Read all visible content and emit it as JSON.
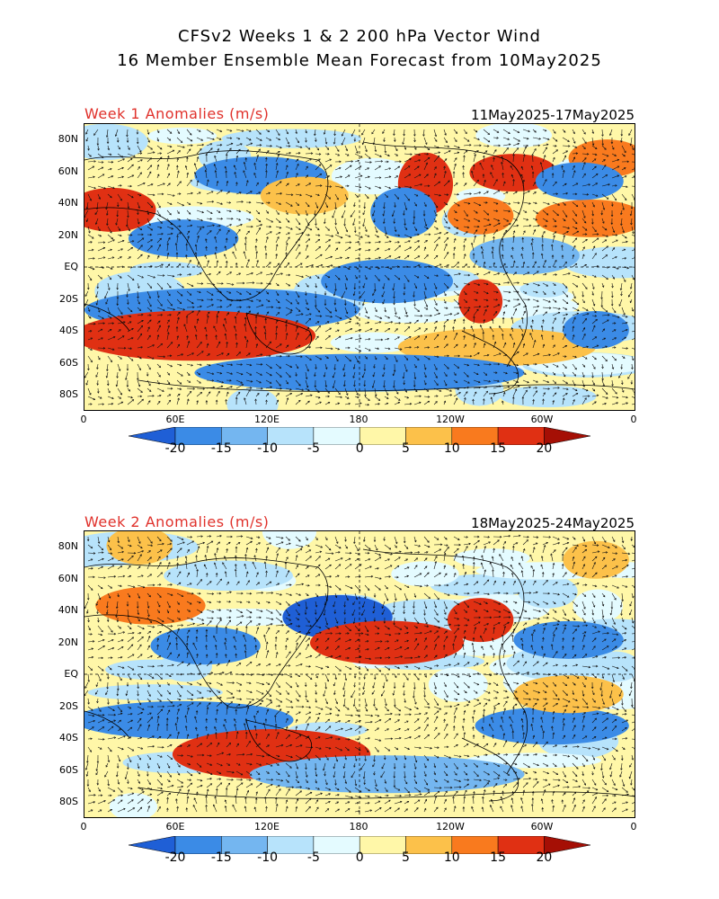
{
  "title_line1": "CFSv2 Weeks 1 & 2 200 hPa Vector Wind",
  "title_line2": "16 Member Ensemble Mean Forecast from 10May2025",
  "panels": [
    {
      "label": "Week 1 Anomalies (m/s)",
      "dates": "11May2025-17May2025"
    },
    {
      "label": "Week 2 Anomalies (m/s)",
      "dates": "18May2025-24May2025"
    }
  ],
  "lat_labels": [
    "80N",
    "60N",
    "40N",
    "20N",
    "EQ",
    "20S",
    "40S",
    "60S",
    "80S"
  ],
  "lon_labels": [
    "0",
    "60E",
    "120E",
    "180",
    "120W",
    "60W",
    "0"
  ],
  "colorbar": {
    "ticks": [
      "-20",
      "-15",
      "-10",
      "-5",
      "0",
      "5",
      "10",
      "15",
      "20"
    ],
    "colors": [
      "#1f5fd6",
      "#3b8be6",
      "#74b6f0",
      "#b7e3fb",
      "#e4fbff",
      "#fff7a8",
      "#fcc14a",
      "#f97a1e",
      "#e03013",
      "#a50f05"
    ]
  },
  "colors": {
    "title_red": "#e0312b",
    "positive_strong": "#e03013",
    "positive": "#fcc14a",
    "negative": "#3b8be6",
    "negative_light": "#b7e3fb"
  }
}
